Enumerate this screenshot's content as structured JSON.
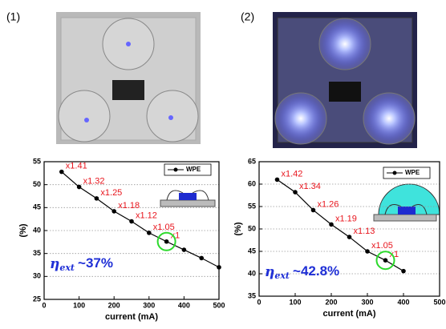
{
  "chart_data": [
    {
      "type": "line",
      "panel": "(1)",
      "xlabel": "current (mA)",
      "ylabel": "(%)",
      "x": [
        50,
        100,
        150,
        200,
        250,
        300,
        350,
        400,
        450,
        500
      ],
      "series": [
        {
          "name": "WPE",
          "color": "#000000",
          "values": [
            52.8,
            49.5,
            47.0,
            44.2,
            42.0,
            39.5,
            37.6,
            35.8,
            34.0,
            32.0
          ]
        }
      ],
      "point_labels": [
        "x1.41",
        "x1.32",
        "x1.25",
        "x1.18",
        "x1.12",
        "x1.05",
        "x1",
        null,
        null,
        null
      ],
      "xlim": [
        0,
        500
      ],
      "xticks": [
        0,
        100,
        200,
        300,
        400,
        500
      ],
      "ylim": [
        25,
        55
      ],
      "yticks": [
        25,
        30,
        35,
        40,
        45,
        50,
        55
      ],
      "grid": true,
      "annotation": {
        "symbol": "η",
        "subscript": "ext",
        "text": "~37%"
      }
    },
    {
      "type": "line",
      "panel": "(2)",
      "xlabel": "current (mA)",
      "ylabel": "(%)",
      "x": [
        50,
        100,
        150,
        200,
        250,
        300,
        350,
        400
      ],
      "series": [
        {
          "name": "WPE",
          "color": "#000000",
          "values": [
            61.0,
            58.2,
            54.2,
            51.0,
            48.2,
            45.0,
            43.0,
            40.6
          ]
        }
      ],
      "point_labels": [
        "x1.42",
        "x1.34",
        "x1.26",
        "x1.19",
        "x1.13",
        "x1.05",
        "x1",
        null
      ],
      "xlim": [
        0,
        500
      ],
      "xticks": [
        0,
        100,
        200,
        300,
        400,
        500
      ],
      "ylim": [
        35,
        65
      ],
      "yticks": [
        35,
        40,
        45,
        50,
        55,
        60,
        65
      ],
      "grid": true,
      "annotation": {
        "symbol": "η",
        "subscript": "ext",
        "text": "~42.8%"
      }
    }
  ]
}
